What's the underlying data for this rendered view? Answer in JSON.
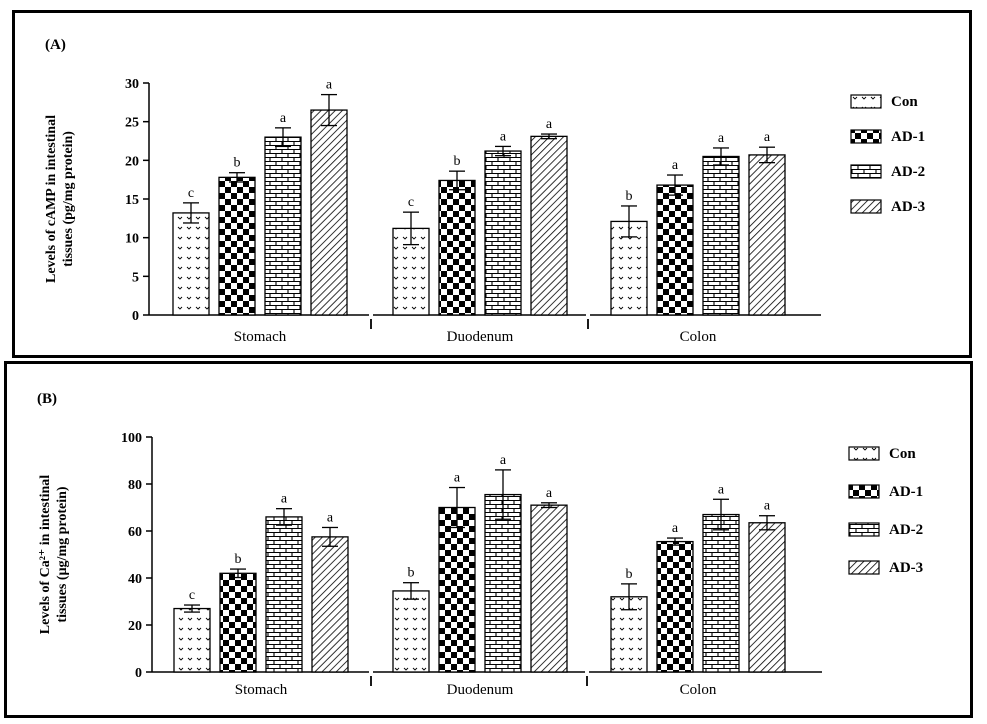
{
  "chart_data": [
    {
      "type": "bar",
      "panel_label": "(A)",
      "ylabel_line1": "Levels of cAMP in intestinal",
      "ylabel_line2": "tissues (pg/mg protein)",
      "xlabel": "",
      "categories": [
        "Stomach",
        "Duodenum",
        "Colon"
      ],
      "ylim": [
        0,
        30
      ],
      "yticks": [
        0,
        5,
        10,
        15,
        20,
        25,
        30
      ],
      "legend_position": "right",
      "series": [
        {
          "name": "Con",
          "pattern": "wavy",
          "values": [
            13.2,
            11.2,
            12.1
          ],
          "errors": [
            1.3,
            2.1,
            2.0
          ],
          "letters": [
            "c",
            "c",
            "b"
          ]
        },
        {
          "name": "AD-1",
          "pattern": "checker",
          "values": [
            17.8,
            17.4,
            16.8
          ],
          "errors": [
            0.6,
            1.2,
            1.3
          ],
          "letters": [
            "b",
            "b",
            "a"
          ]
        },
        {
          "name": "AD-2",
          "pattern": "brick",
          "values": [
            23.0,
            21.2,
            20.5
          ],
          "errors": [
            1.2,
            0.6,
            1.1
          ],
          "letters": [
            "a",
            "a",
            "a"
          ]
        },
        {
          "name": "AD-3",
          "pattern": "diagonal",
          "values": [
            26.5,
            23.1,
            20.7
          ],
          "errors": [
            2.0,
            0.3,
            1.0
          ],
          "letters": [
            "a",
            "a",
            "a"
          ]
        }
      ]
    },
    {
      "type": "bar",
      "panel_label": "(B)",
      "ylabel_line1": "Levels of Ca²⁺ in intestinal",
      "ylabel_line2": "tissues (µg/mg protein)",
      "xlabel": "",
      "categories": [
        "Stomach",
        "Duodenum",
        "Colon"
      ],
      "ylim": [
        0,
        100
      ],
      "yticks": [
        0,
        20,
        40,
        60,
        80,
        100
      ],
      "legend_position": "right",
      "series": [
        {
          "name": "Con",
          "pattern": "wavy",
          "values": [
            27.0,
            34.5,
            32.0
          ],
          "errors": [
            1.5,
            3.5,
            5.5
          ],
          "letters": [
            "c",
            "b",
            "b"
          ]
        },
        {
          "name": "AD-1",
          "pattern": "checker",
          "values": [
            42.0,
            70.0,
            55.5
          ],
          "errors": [
            1.8,
            8.5,
            1.5
          ],
          "letters": [
            "b",
            "a",
            "a"
          ]
        },
        {
          "name": "AD-2",
          "pattern": "brick",
          "values": [
            66.0,
            75.5,
            67.0
          ],
          "errors": [
            3.5,
            10.5,
            6.5
          ],
          "letters": [
            "a",
            "a",
            "a"
          ]
        },
        {
          "name": "AD-3",
          "pattern": "diagonal",
          "values": [
            57.5,
            71.0,
            63.5
          ],
          "errors": [
            4.0,
            1.0,
            3.0
          ],
          "letters": [
            "a",
            "a",
            "a"
          ]
        }
      ]
    }
  ]
}
